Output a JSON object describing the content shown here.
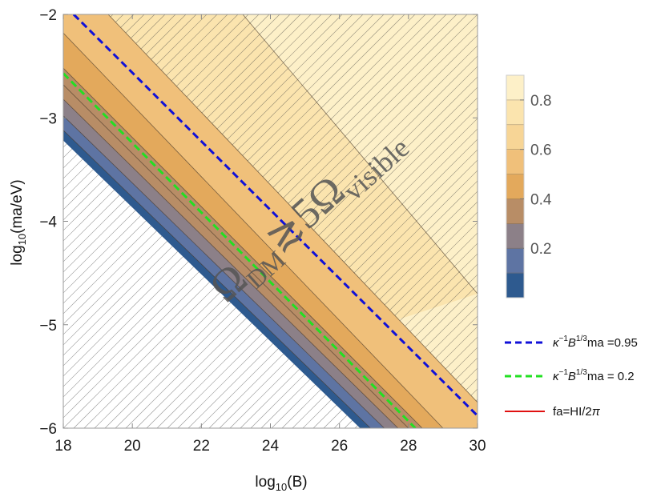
{
  "chart_data": {
    "type": "contour",
    "xlabel_base": "log",
    "xlabel_sub": "10",
    "xlabel_arg": "(B)",
    "ylabel_base": "log",
    "ylabel_sub": "10",
    "ylabel_arg": "(ma/eV)",
    "xlim": [
      18,
      30
    ],
    "ylim": [
      -6,
      -2
    ],
    "x_ticks": [
      18,
      20,
      22,
      24,
      26,
      28,
      30
    ],
    "x_tick_labels": [
      "18",
      "20",
      "22",
      "24",
      "26",
      "28",
      "30"
    ],
    "y_ticks": [
      -6,
      -5,
      -4,
      -3,
      -2
    ],
    "y_tick_labels": [
      "−6",
      "−5",
      "−4",
      "−3",
      "−2"
    ],
    "colorbar": {
      "ticks": [
        0.2,
        0.4,
        0.6,
        0.8
      ],
      "tick_labels": [
        "0.2",
        "0.4",
        "0.6",
        "0.8"
      ],
      "levels": [
        0.1,
        0.2,
        0.3,
        0.4,
        0.5,
        0.6,
        0.7,
        0.8,
        0.9
      ],
      "colors": [
        "#2e5a8f",
        "#5e74a3",
        "#8c8088",
        "#b88d66",
        "#e3a95c",
        "#f0c07a",
        "#f7d596",
        "#fbe4ae",
        "#fdf0c8"
      ],
      "frame_color": "#cccccc"
    },
    "annotation": {
      "omega": "Ω",
      "sub1": "DM",
      "rel": "≳5",
      "sub2": "visible"
    },
    "lines": [
      {
        "name_parts": [
          "κ",
          "−1",
          "B",
          "1/3",
          "ma =0.95"
        ],
        "style": "dashed",
        "color": "#1010d8",
        "x": [
          18.3,
          30.0
        ],
        "y": [
          -2.0,
          -5.88
        ]
      },
      {
        "name_parts": [
          "κ",
          "−1",
          "B",
          "1/3",
          "ma = 0.2"
        ],
        "style": "dashed",
        "color": "#22e022",
        "x": [
          18.0,
          28.2
        ],
        "y": [
          -2.57,
          -6.0
        ]
      },
      {
        "name_parts": [
          "fa=HI/2",
          "π"
        ],
        "style": "solid",
        "color": "#e01010",
        "x": [],
        "y": []
      }
    ]
  }
}
